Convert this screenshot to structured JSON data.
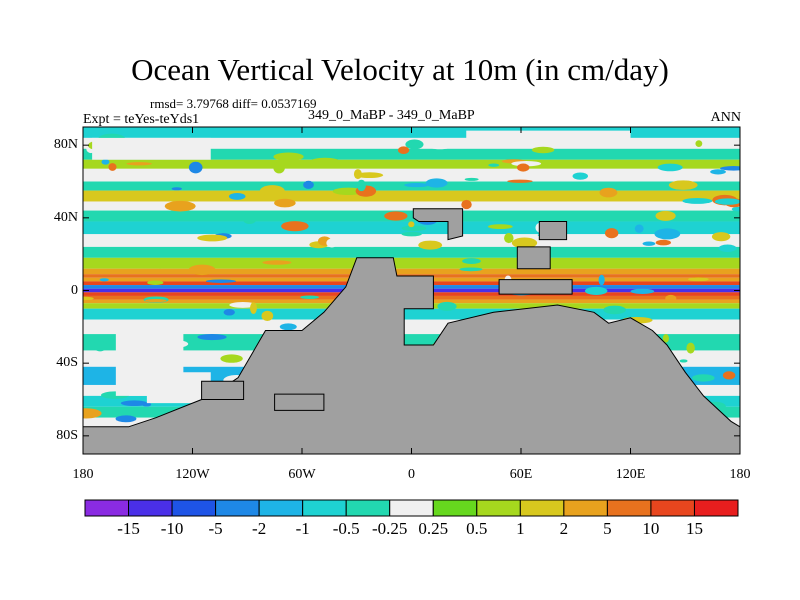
{
  "chart_data": {
    "type": "heatmap",
    "title": "Ocean Vertical Velocity at 10m (in cm/day)",
    "stats_line": "rmsd= 3.79768 diff= 0.0537169",
    "experiment": "Expt = teYes-teYds1",
    "comparison": "349_0_MaBP - 349_0_MaBP",
    "season": "ANN",
    "x_axis": {
      "range": [
        -180,
        180
      ],
      "ticks": [
        -180,
        -120,
        -60,
        0,
        60,
        120,
        180
      ],
      "tick_labels": [
        "180",
        "120W",
        "60W",
        "0",
        "60E",
        "120E",
        "180"
      ]
    },
    "y_axis": {
      "range": [
        -90,
        90
      ],
      "ticks": [
        80,
        40,
        0,
        -40,
        -80
      ],
      "tick_labels": [
        "80N",
        "40N",
        "0",
        "40S",
        "80S"
      ]
    },
    "colorbar": {
      "levels": [
        "-15",
        "-10",
        "-5",
        "-2",
        "-1",
        "-0.5",
        "-0.25",
        "0.25",
        "0.5",
        "1",
        "2",
        "5",
        "10",
        "15"
      ],
      "colors": [
        "#8a2be2",
        "#4a2fe8",
        "#1e54e6",
        "#1e88e6",
        "#1eb4e6",
        "#1ed2d2",
        "#22d8b0",
        "#f0f0f0",
        "#66d81e",
        "#a6d81e",
        "#d8c81e",
        "#e8a21e",
        "#e8721e",
        "#e8461e",
        "#e81e1e"
      ]
    },
    "land_color": "#a0a0a0"
  }
}
